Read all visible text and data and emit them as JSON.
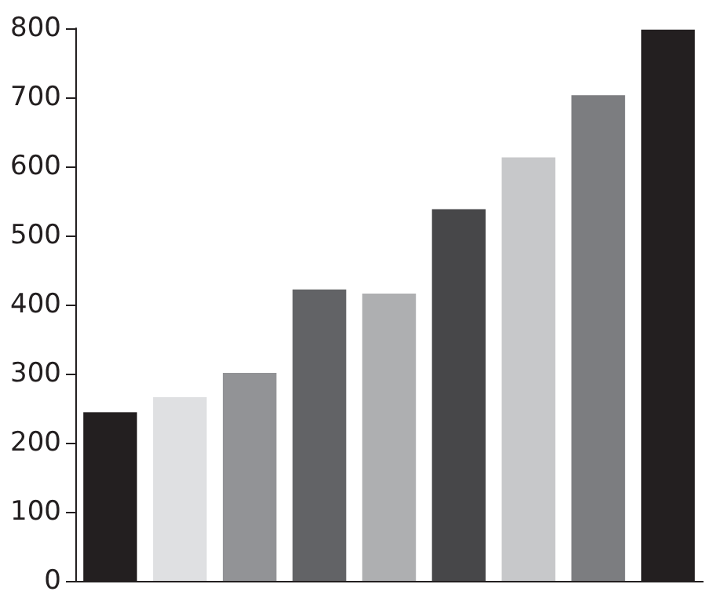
{
  "chart_data": {
    "type": "bar",
    "categories": [
      null,
      null,
      null,
      null,
      null,
      null,
      null,
      null,
      null
    ],
    "values": [
      244,
      266,
      301,
      422,
      416,
      538,
      613,
      703,
      798
    ],
    "colors": [
      "#231f20",
      "#dfe0e2",
      "#929396",
      "#626366",
      "#aeafb1",
      "#474749",
      "#c7c8ca",
      "#7c7d80",
      "#231f20"
    ],
    "ylim": [
      0,
      800
    ],
    "yticks": [
      0,
      100,
      200,
      300,
      400,
      500,
      600,
      700,
      800
    ],
    "grid": false
  }
}
